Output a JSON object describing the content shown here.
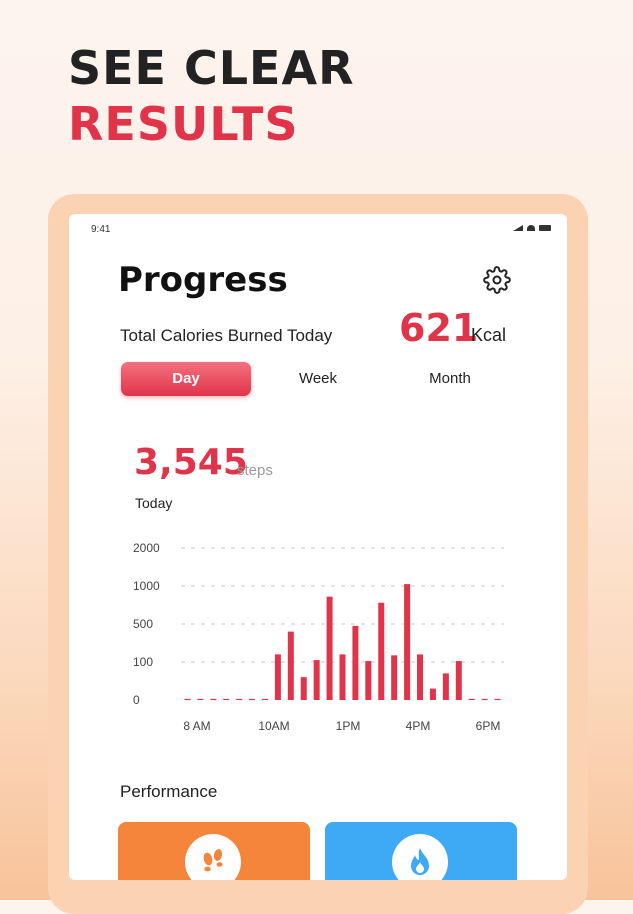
{
  "headline": {
    "line1": "SEE CLEAR",
    "line2": "RESULTS"
  },
  "status_bar": {
    "time": "9:41"
  },
  "progress": {
    "title": "Progress",
    "calories_label": "Total Calories Burned Today",
    "calories_value": "621",
    "calories_unit": "Kcal",
    "tabs": [
      {
        "label": "Day",
        "active": true
      },
      {
        "label": "Week",
        "active": false
      },
      {
        "label": "Month",
        "active": false
      }
    ],
    "steps_value": "3,545",
    "steps_unit": "steps",
    "steps_period": "Today"
  },
  "chart_data": {
    "type": "bar",
    "y_tick_labels": [
      "2000",
      "1000",
      "500",
      "100",
      "0"
    ],
    "x_tick_labels": [
      "8 AM",
      "10AM",
      "1PM",
      "4PM",
      "6PM"
    ],
    "values": [
      0,
      0,
      0,
      0,
      0,
      0,
      0,
      180,
      420,
      60,
      120,
      860,
      180,
      480,
      110,
      780,
      170,
      1050,
      180,
      30,
      70,
      110,
      0,
      0,
      0
    ],
    "grid": true,
    "bar_color": "#e0344a",
    "grid_color": "#c8c8c8"
  },
  "performance": {
    "label": "Performance",
    "cards": [
      {
        "icon": "footprints-icon",
        "color": "#f4853b"
      },
      {
        "icon": "flame-icon",
        "color": "#3ea9f4"
      }
    ]
  }
}
